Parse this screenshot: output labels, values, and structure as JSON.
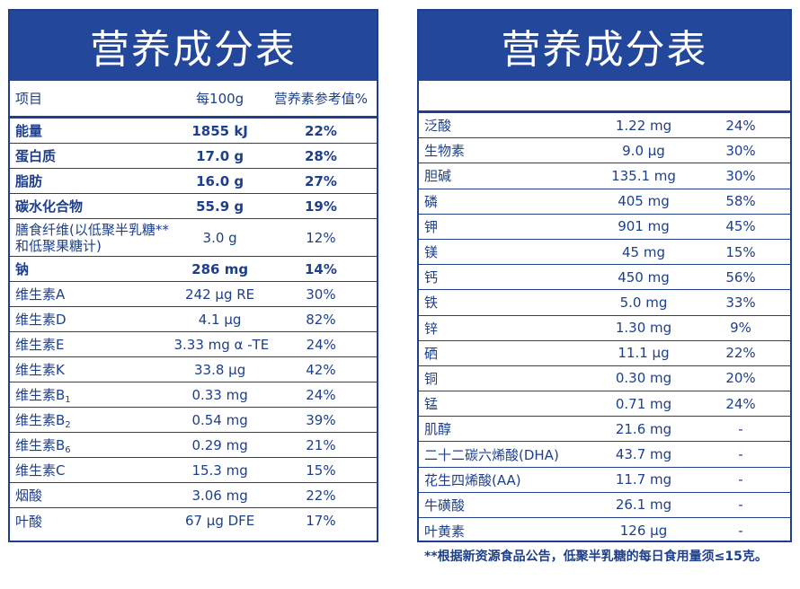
{
  "title": "营养成分表",
  "left_table": {
    "headers": {
      "item": "项目",
      "per100g": "每100g",
      "nrv": "营养素参考值%"
    },
    "rows": [
      {
        "name": "能量",
        "value": "1855 kJ",
        "nrv": "22%"
      },
      {
        "name": "蛋白质",
        "value": "17.0 g",
        "nrv": "28%"
      },
      {
        "name": "脂肪",
        "value": "16.0 g",
        "nrv": "27%"
      },
      {
        "name": "碳水化合物",
        "value": "55.9 g",
        "nrv": "19%"
      },
      {
        "name": "膳食纤维(以低聚半乳糖**和低聚果糖计)",
        "value": "3.0 g",
        "nrv": "12%"
      },
      {
        "name": "钠",
        "value": "286 mg",
        "nrv": "14%"
      },
      {
        "name": "维生素A",
        "value": "242 µg RE",
        "nrv": "30%"
      },
      {
        "name": "维生素D",
        "value": "4.1 µg",
        "nrv": "82%"
      },
      {
        "name": "维生素E",
        "value": "3.33 mg α -TE",
        "nrv": "24%"
      },
      {
        "name": "维生素K",
        "value": "33.8 µg",
        "nrv": "42%"
      },
      {
        "name": "维生素B",
        "sub": "1",
        "value": "0.33 mg",
        "nrv": "24%"
      },
      {
        "name": "维生素B",
        "sub": "2",
        "value": "0.54 mg",
        "nrv": "39%"
      },
      {
        "name": "维生素B",
        "sub": "6",
        "value": "0.29 mg",
        "nrv": "21%"
      },
      {
        "name": "维生素C",
        "value": "15.3 mg",
        "nrv": "15%"
      },
      {
        "name": "烟酸",
        "value": "3.06 mg",
        "nrv": "22%"
      },
      {
        "name": "叶酸",
        "value": "67 µg DFE",
        "nrv": "17%"
      }
    ]
  },
  "right_table": {
    "rows": [
      {
        "name": "泛酸",
        "value": "1.22 mg",
        "nrv": "24%"
      },
      {
        "name": "生物素",
        "value": "9.0 µg",
        "nrv": "30%"
      },
      {
        "name": "胆碱",
        "value": "135.1 mg",
        "nrv": "30%"
      },
      {
        "name": "磷",
        "value": "405 mg",
        "nrv": "58%"
      },
      {
        "name": "钾",
        "value": "901 mg",
        "nrv": "45%"
      },
      {
        "name": "镁",
        "value": "45 mg",
        "nrv": "15%"
      },
      {
        "name": "钙",
        "value": "450 mg",
        "nrv": "56%"
      },
      {
        "name": "铁",
        "value": "5.0 mg",
        "nrv": "33%"
      },
      {
        "name": "锌",
        "value": "1.30 mg",
        "nrv": "9%"
      },
      {
        "name": "硒",
        "value": "11.1 µg",
        "nrv": "22%"
      },
      {
        "name": "铜",
        "value": "0.30 mg",
        "nrv": "20%"
      },
      {
        "name": "锰",
        "value": "0.71 mg",
        "nrv": "24%"
      },
      {
        "name": "肌醇",
        "value": "21.6 mg",
        "nrv": "-"
      },
      {
        "name": "二十二碳六烯酸(DHA)",
        "value": "43.7 mg",
        "nrv": "-"
      },
      {
        "name": "花生四烯酸(AA)",
        "value": "11.7 mg",
        "nrv": "-"
      },
      {
        "name": "牛磺酸",
        "value": "26.1 mg",
        "nrv": "-"
      },
      {
        "name": "叶黄素",
        "value": "126 µg",
        "nrv": "-"
      }
    ]
  },
  "footnote": "**根据新资源食品公告，低聚半乳糖的每日食用量须≤15克。",
  "colors": {
    "brand_blue": "#23489b",
    "text_blue": "#1d3f8c",
    "background": "#ffffff"
  }
}
